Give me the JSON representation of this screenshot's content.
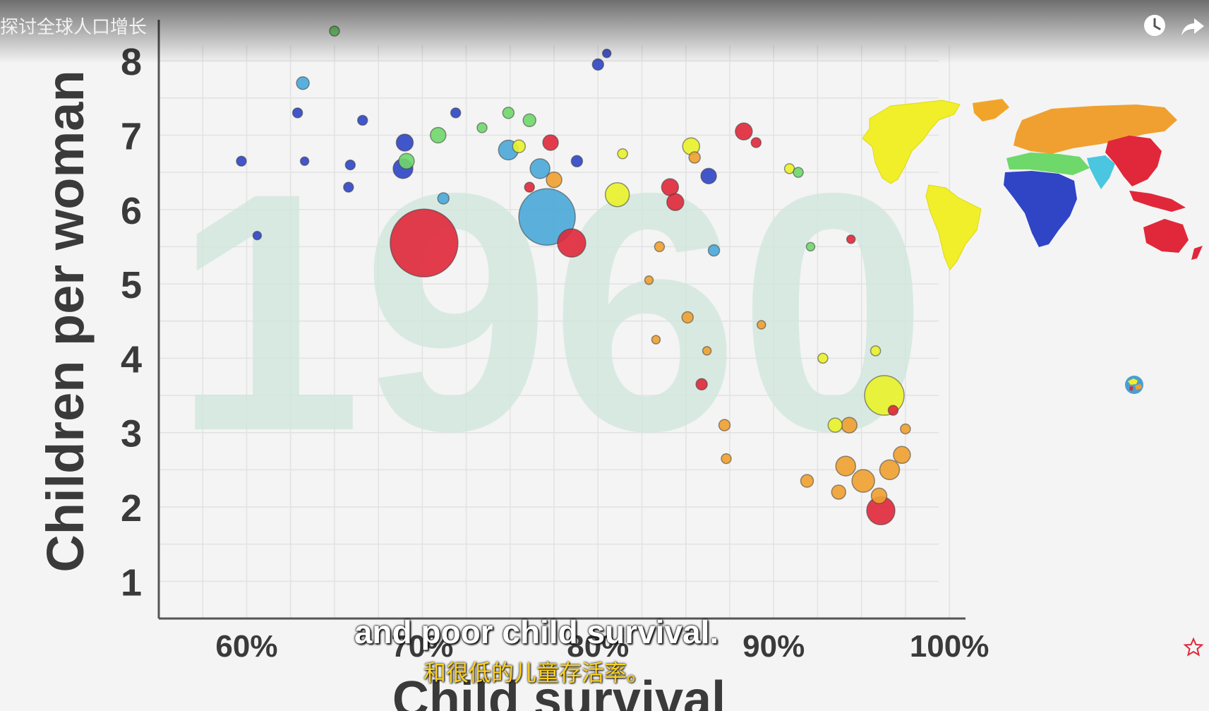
{
  "video": {
    "title": "探讨全球人口增长",
    "subtitle_en": "and poor child survival.",
    "subtitle_zh": "和很低的儿童存活率。",
    "icons": [
      "watch-later-icon",
      "share-icon",
      "favorite-star-icon"
    ]
  },
  "chart_data": {
    "type": "scatter",
    "watermark_year": "1960",
    "xlabel": "Child survival",
    "ylabel": "Children per woman",
    "xlim": [
      55,
      101
    ],
    "ylim": [
      0.5,
      8.4
    ],
    "x_ticks": [
      60,
      70,
      80,
      90,
      100
    ],
    "x_tick_labels": [
      "60%",
      "70%",
      "80%",
      "90%",
      "100%"
    ],
    "y_ticks": [
      1,
      2,
      3,
      4,
      5,
      6,
      7,
      8
    ],
    "y_tick_labels": [
      "1",
      "2",
      "3",
      "4",
      "5",
      "6",
      "7",
      "8"
    ],
    "grid": true,
    "legend": "world map by region, top-right",
    "region_colors": {
      "south_asia": "#4aa8d8",
      "sub_saharan_africa": "#2f45c6",
      "middle_east_north_africa": "#6fd86a",
      "america": "#eaf22a",
      "europe_central_asia": "#f0a030",
      "east_asia_pacific": "#e0283a"
    },
    "points": [
      {
        "x": 70.1,
        "y": 5.55,
        "size": 48,
        "region": "east_asia_pacific"
      },
      {
        "x": 77.1,
        "y": 5.9,
        "size": 40,
        "region": "south_asia"
      },
      {
        "x": 78.5,
        "y": 5.55,
        "size": 20,
        "region": "east_asia_pacific"
      },
      {
        "x": 96.3,
        "y": 3.5,
        "size": 28,
        "region": "america"
      },
      {
        "x": 96.1,
        "y": 1.95,
        "size": 20,
        "region": "east_asia_pacific"
      },
      {
        "x": 63.2,
        "y": 7.7,
        "size": 9,
        "region": "south_asia"
      },
      {
        "x": 65.0,
        "y": 8.4,
        "size": 7,
        "region": "middle_east_north_africa"
      },
      {
        "x": 80.0,
        "y": 7.95,
        "size": 8,
        "region": "sub_saharan_africa"
      },
      {
        "x": 80.5,
        "y": 8.1,
        "size": 6,
        "region": "sub_saharan_africa"
      },
      {
        "x": 59.7,
        "y": 6.65,
        "size": 7,
        "region": "sub_saharan_africa"
      },
      {
        "x": 60.6,
        "y": 5.65,
        "size": 6,
        "region": "sub_saharan_africa"
      },
      {
        "x": 62.9,
        "y": 7.3,
        "size": 7,
        "region": "sub_saharan_africa"
      },
      {
        "x": 63.3,
        "y": 6.65,
        "size": 6,
        "region": "sub_saharan_africa"
      },
      {
        "x": 65.9,
        "y": 6.6,
        "size": 7,
        "region": "sub_saharan_africa"
      },
      {
        "x": 65.8,
        "y": 6.3,
        "size": 7,
        "region": "sub_saharan_africa"
      },
      {
        "x": 66.6,
        "y": 7.2,
        "size": 7,
        "region": "sub_saharan_africa"
      },
      {
        "x": 69.0,
        "y": 6.9,
        "size": 12,
        "region": "sub_saharan_africa"
      },
      {
        "x": 68.9,
        "y": 6.55,
        "size": 14,
        "region": "sub_saharan_africa"
      },
      {
        "x": 69.1,
        "y": 6.65,
        "size": 11,
        "region": "middle_east_north_africa"
      },
      {
        "x": 70.9,
        "y": 7.0,
        "size": 11,
        "region": "middle_east_north_africa"
      },
      {
        "x": 71.9,
        "y": 7.3,
        "size": 7,
        "region": "sub_saharan_africa"
      },
      {
        "x": 71.2,
        "y": 6.15,
        "size": 8,
        "region": "south_asia"
      },
      {
        "x": 73.4,
        "y": 7.1,
        "size": 7,
        "region": "middle_east_north_africa"
      },
      {
        "x": 74.9,
        "y": 7.3,
        "size": 8,
        "region": "middle_east_north_africa"
      },
      {
        "x": 74.9,
        "y": 6.8,
        "size": 14,
        "region": "south_asia"
      },
      {
        "x": 75.5,
        "y": 6.85,
        "size": 9,
        "region": "america"
      },
      {
        "x": 76.1,
        "y": 7.2,
        "size": 9,
        "region": "middle_east_north_africa"
      },
      {
        "x": 76.7,
        "y": 6.55,
        "size": 14,
        "region": "south_asia"
      },
      {
        "x": 77.3,
        "y": 6.9,
        "size": 11,
        "region": "east_asia_pacific"
      },
      {
        "x": 77.5,
        "y": 6.4,
        "size": 11,
        "region": "europe_central_asia"
      },
      {
        "x": 76.1,
        "y": 6.3,
        "size": 7,
        "region": "east_asia_pacific"
      },
      {
        "x": 78.8,
        "y": 6.65,
        "size": 8,
        "region": "sub_saharan_africa"
      },
      {
        "x": 81.4,
        "y": 6.75,
        "size": 7,
        "region": "america"
      },
      {
        "x": 81.1,
        "y": 6.2,
        "size": 17,
        "region": "america"
      },
      {
        "x": 84.1,
        "y": 6.3,
        "size": 12,
        "region": "east_asia_pacific"
      },
      {
        "x": 85.3,
        "y": 6.85,
        "size": 12,
        "region": "america"
      },
      {
        "x": 85.5,
        "y": 6.7,
        "size": 8,
        "region": "europe_central_asia"
      },
      {
        "x": 86.3,
        "y": 6.45,
        "size": 11,
        "region": "sub_saharan_africa"
      },
      {
        "x": 84.4,
        "y": 6.1,
        "size": 12,
        "region": "east_asia_pacific"
      },
      {
        "x": 88.3,
        "y": 7.05,
        "size": 12,
        "region": "east_asia_pacific"
      },
      {
        "x": 89.0,
        "y": 6.9,
        "size": 7,
        "region": "east_asia_pacific"
      },
      {
        "x": 90.9,
        "y": 6.55,
        "size": 7,
        "region": "america"
      },
      {
        "x": 86.6,
        "y": 5.45,
        "size": 8,
        "region": "south_asia"
      },
      {
        "x": 83.5,
        "y": 5.5,
        "size": 7,
        "region": "europe_central_asia"
      },
      {
        "x": 82.9,
        "y": 5.05,
        "size": 6,
        "region": "europe_central_asia"
      },
      {
        "x": 85.1,
        "y": 4.55,
        "size": 8,
        "region": "europe_central_asia"
      },
      {
        "x": 83.3,
        "y": 4.25,
        "size": 6,
        "region": "europe_central_asia"
      },
      {
        "x": 86.2,
        "y": 4.1,
        "size": 6,
        "region": "europe_central_asia"
      },
      {
        "x": 85.9,
        "y": 3.65,
        "size": 8,
        "region": "east_asia_pacific"
      },
      {
        "x": 92.8,
        "y": 4.0,
        "size": 7,
        "region": "america"
      },
      {
        "x": 95.8,
        "y": 4.1,
        "size": 7,
        "region": "america"
      },
      {
        "x": 87.2,
        "y": 3.1,
        "size": 8,
        "region": "europe_central_asia"
      },
      {
        "x": 93.5,
        "y": 3.1,
        "size": 10,
        "region": "america"
      },
      {
        "x": 87.3,
        "y": 2.65,
        "size": 7,
        "region": "europe_central_asia"
      },
      {
        "x": 94.1,
        "y": 2.55,
        "size": 14,
        "region": "europe_central_asia"
      },
      {
        "x": 95.1,
        "y": 2.35,
        "size": 16,
        "region": "europe_central_asia"
      },
      {
        "x": 96.6,
        "y": 2.5,
        "size": 14,
        "region": "europe_central_asia"
      },
      {
        "x": 97.3,
        "y": 2.7,
        "size": 12,
        "region": "europe_central_asia"
      },
      {
        "x": 93.7,
        "y": 2.2,
        "size": 10,
        "region": "europe_central_asia"
      },
      {
        "x": 96.0,
        "y": 2.15,
        "size": 11,
        "region": "europe_central_asia"
      },
      {
        "x": 91.9,
        "y": 2.35,
        "size": 9,
        "region": "europe_central_asia"
      },
      {
        "x": 97.5,
        "y": 3.05,
        "size": 7,
        "region": "europe_central_asia"
      },
      {
        "x": 96.8,
        "y": 3.3,
        "size": 7,
        "region": "east_asia_pacific"
      },
      {
        "x": 94.3,
        "y": 3.1,
        "size": 11,
        "region": "europe_central_asia"
      },
      {
        "x": 89.3,
        "y": 4.45,
        "size": 6,
        "region": "europe_central_asia"
      },
      {
        "x": 92.1,
        "y": 5.5,
        "size": 6,
        "region": "middle_east_north_africa"
      },
      {
        "x": 94.4,
        "y": 5.6,
        "size": 6,
        "region": "east_asia_pacific"
      },
      {
        "x": 91.4,
        "y": 6.5,
        "size": 7,
        "region": "middle_east_north_africa"
      }
    ]
  }
}
